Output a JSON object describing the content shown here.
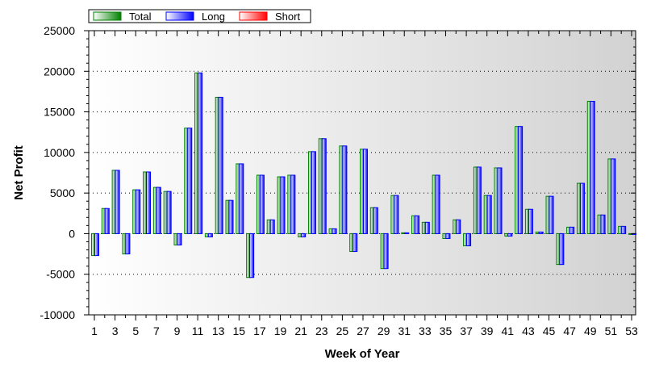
{
  "chart_data": {
    "type": "bar",
    "title": "",
    "xlabel": "Week of Year",
    "ylabel": "Net Profit",
    "ylim": [
      -10000,
      25000
    ],
    "yticks": [
      -10000,
      -5000,
      0,
      5000,
      10000,
      15000,
      20000,
      25000
    ],
    "xlim": [
      1,
      53
    ],
    "xtick_labels": [
      "1",
      "3",
      "5",
      "7",
      "9",
      "11",
      "13",
      "15",
      "17",
      "19",
      "21",
      "23",
      "25",
      "27",
      "29",
      "31",
      "33",
      "35",
      "37",
      "39",
      "41",
      "43",
      "45",
      "47",
      "49",
      "51",
      "53"
    ],
    "grid": "horizontal-dotted",
    "legend_placement": "top-left",
    "x": [
      1,
      2,
      3,
      4,
      5,
      6,
      7,
      8,
      9,
      10,
      11,
      12,
      13,
      14,
      15,
      16,
      17,
      18,
      19,
      20,
      21,
      22,
      23,
      24,
      25,
      26,
      27,
      28,
      29,
      30,
      31,
      32,
      33,
      34,
      35,
      36,
      37,
      38,
      39,
      40,
      41,
      42,
      43,
      44,
      45,
      46,
      47,
      48,
      49,
      50,
      51,
      52,
      53
    ],
    "series": [
      {
        "name": "Total",
        "color": "#008000",
        "values": [
          -2700,
          3100,
          7800,
          -2500,
          5400,
          7600,
          5700,
          5200,
          -1400,
          13000,
          19800,
          -400,
          16800,
          4100,
          8600,
          -5400,
          7200,
          1700,
          7000,
          7200,
          -400,
          10100,
          11700,
          600,
          10800,
          -2200,
          10400,
          3200,
          -4300,
          4700,
          100,
          2200,
          1400,
          7200,
          -600,
          1700,
          -1500,
          8200,
          4700,
          8100,
          -300,
          13200,
          3000,
          200,
          4600,
          -3800,
          800,
          6200,
          16300,
          2300,
          9200,
          900,
          0
        ]
      },
      {
        "name": "Long",
        "color": "#0000ff",
        "values": [
          -2700,
          3100,
          7800,
          -2500,
          5400,
          7600,
          5700,
          5200,
          -1400,
          13000,
          19800,
          -400,
          16800,
          4100,
          8600,
          -5400,
          7200,
          1700,
          7000,
          7200,
          -400,
          10100,
          11700,
          600,
          10800,
          -2200,
          10400,
          3200,
          -4300,
          4700,
          100,
          2200,
          1400,
          7200,
          -600,
          1700,
          -1500,
          8200,
          4700,
          8100,
          -300,
          13200,
          3000,
          200,
          4600,
          -3800,
          800,
          6200,
          16300,
          2300,
          9200,
          900,
          0
        ]
      },
      {
        "name": "Short",
        "color": "#ff0000",
        "values": [
          0,
          0,
          0,
          0,
          0,
          0,
          0,
          0,
          0,
          0,
          0,
          0,
          0,
          0,
          0,
          0,
          0,
          0,
          0,
          0,
          0,
          0,
          0,
          0,
          0,
          0,
          0,
          0,
          0,
          0,
          0,
          0,
          0,
          0,
          0,
          0,
          0,
          0,
          0,
          0,
          0,
          0,
          0,
          0,
          0,
          0,
          0,
          0,
          0,
          0,
          0,
          0,
          0
        ]
      }
    ]
  }
}
